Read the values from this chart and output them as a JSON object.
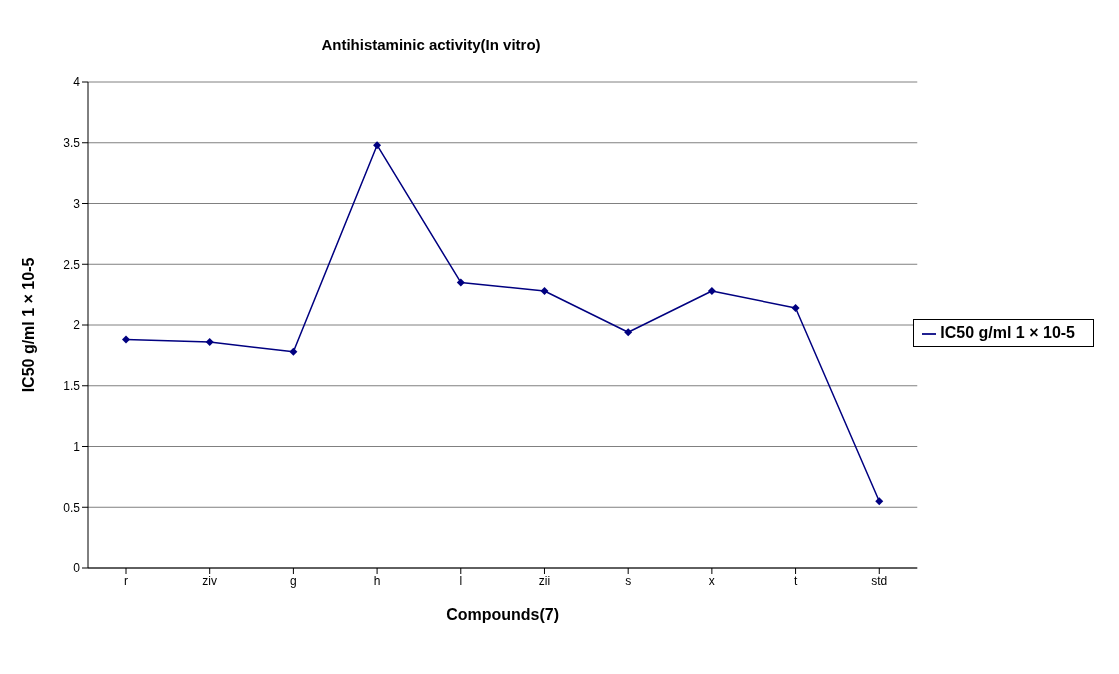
{
  "chart_data": {
    "type": "line",
    "title": "Antihistaminic activity(In vitro)",
    "xlabel": "Compounds(7)",
    "ylabel": "IC50 g/ml 1 × 10-5",
    "categories": [
      "r",
      "ziv",
      "g",
      "h",
      "l",
      "zii",
      "s",
      "x",
      "t",
      "std"
    ],
    "series": [
      {
        "name": "IC50 g/ml 1 × 10-5",
        "color": "#000080",
        "values": [
          1.88,
          1.86,
          1.78,
          3.48,
          2.35,
          2.28,
          1.94,
          2.28,
          2.14,
          0.55
        ]
      }
    ],
    "ylim": [
      0,
      4
    ],
    "yticks": [
      0,
      0.5,
      1,
      1.5,
      2,
      2.5,
      3,
      3.5,
      4
    ],
    "grid": "y",
    "legend": "right",
    "marker": "diamond",
    "line_style": "solid"
  }
}
